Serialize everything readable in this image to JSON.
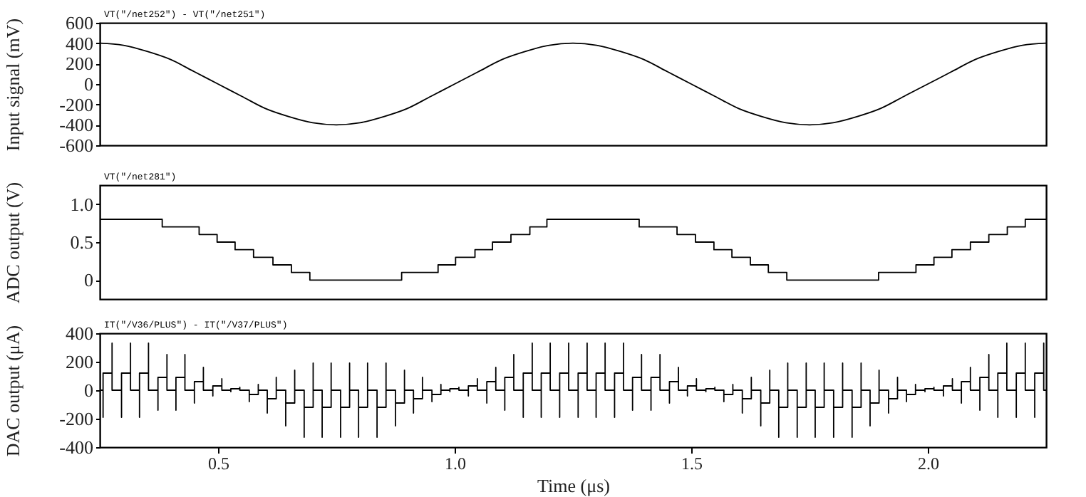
{
  "chart_data": [
    {
      "type": "line",
      "ylabel": "Input signal (mV)",
      "xlim": [
        0.25,
        2.25
      ],
      "ylim": [
        -600,
        600
      ],
      "yticks": [
        -600,
        -400,
        -200,
        0,
        200,
        400,
        600
      ],
      "tick_labels": "y",
      "grid": false,
      "series": [
        {
          "name": "VT(\"/net252\") - VT(\"/net251\")",
          "color": "#000000",
          "x": [
            0.25,
            0.3,
            0.35,
            0.4,
            0.45,
            0.5,
            0.55,
            0.6,
            0.65,
            0.7,
            0.75,
            0.8,
            0.85,
            0.9,
            0.95,
            1.0,
            1.05,
            1.1,
            1.15,
            1.2,
            1.25,
            1.3,
            1.35,
            1.4,
            1.45,
            1.5,
            1.55,
            1.6,
            1.65,
            1.7,
            1.75,
            1.8,
            1.85,
            1.9,
            1.95,
            2.0,
            2.05,
            2.1,
            2.15,
            2.2,
            2.25
          ],
          "values": [
            400,
            380,
            320,
            240,
            120,
            0,
            -120,
            -240,
            -320,
            -380,
            -400,
            -380,
            -320,
            -240,
            -120,
            0,
            120,
            240,
            320,
            380,
            400,
            380,
            320,
            240,
            120,
            0,
            -120,
            -240,
            -320,
            -380,
            -400,
            -380,
            -320,
            -240,
            -120,
            0,
            120,
            240,
            320,
            380,
            400
          ]
        }
      ]
    },
    {
      "type": "step",
      "ylabel": "ADC output (V)",
      "xlim": [
        0.25,
        2.25
      ],
      "ylim": [
        -0.25,
        1.25
      ],
      "yticks": [
        0,
        0.5,
        {
          "value": 1,
          "label": "1.0"
        }
      ],
      "tick_labels": "y",
      "grid": false,
      "series": [
        {
          "name": "VT(\"/net281\")",
          "color": "#000000",
          "x": [
            0.25,
            0.382,
            0.46,
            0.498,
            0.536,
            0.575,
            0.616,
            0.655,
            0.694,
            0.888,
            0.965,
            1.002,
            1.043,
            1.08,
            1.119,
            1.159,
            1.195,
            1.39,
            1.47,
            1.509,
            1.548,
            1.586,
            1.625,
            1.663,
            1.702,
            1.896,
            1.975,
            2.013,
            2.051,
            2.09,
            2.129,
            2.168,
            2.206,
            2.25
          ],
          "values": [
            0.8,
            0.7,
            0.6,
            0.5,
            0.4,
            0.3,
            0.2,
            0.1,
            0,
            0.1,
            0.2,
            0.3,
            0.4,
            0.5,
            0.6,
            0.7,
            0.8,
            0.7,
            0.6,
            0.5,
            0.4,
            0.3,
            0.2,
            0.1,
            0,
            0.1,
            0.2,
            0.3,
            0.4,
            0.5,
            0.6,
            0.7,
            0.8,
            0.8
          ]
        }
      ]
    },
    {
      "type": "step",
      "ylabel": "DAC output (μA)",
      "xlabel": "Time (μs)",
      "xlim": [
        0.25,
        2.25
      ],
      "xticks": [
        0.5,
        {
          "value": 1,
          "label": "1.0"
        },
        1.5,
        {
          "value": 2,
          "label": "2.0"
        }
      ],
      "ylim": [
        -400,
        400
      ],
      "yticks": [
        -400,
        -200,
        0,
        200,
        400
      ],
      "grid": false,
      "series": [
        {
          "name": "IT(\"/V36/PLUS\") - IT(\"/V37/PLUS\")",
          "color": "#000000",
          "x": [
            0.25,
            0.257,
            0.257,
            0.276,
            0.276,
            0.296,
            0.296,
            0.315,
            0.315,
            0.334,
            0.334,
            0.353,
            0.353,
            0.373,
            0.373,
            0.392,
            0.392,
            0.411,
            0.411,
            0.43,
            0.43,
            0.45,
            0.45,
            0.469,
            0.469,
            0.489,
            0.489,
            0.508,
            0.508,
            0.527,
            0.527,
            0.546,
            0.546,
            0.566,
            0.566,
            0.585,
            0.585,
            0.604,
            0.604,
            0.623,
            0.623,
            0.643,
            0.643,
            0.662,
            0.662,
            0.682,
            0.682,
            0.701,
            0.701,
            0.72,
            0.72,
            0.739,
            0.739,
            0.759,
            0.759,
            0.778,
            0.778,
            0.797,
            0.797,
            0.816,
            0.816,
            0.836,
            0.836,
            0.855,
            0.855,
            0.875,
            0.875,
            0.894,
            0.894,
            0.913,
            0.913,
            0.932,
            0.932,
            0.952,
            0.952,
            0.971,
            0.971,
            0.99,
            0.99,
            1.009,
            1.009,
            1.029,
            1.029,
            1.048,
            1.048,
            1.068,
            1.068,
            1.087,
            1.087,
            1.106,
            1.106,
            1.125,
            1.125,
            1.145,
            1.145,
            1.164,
            1.164,
            1.183,
            1.183,
            1.202,
            1.202,
            1.222,
            1.222,
            1.241,
            1.241,
            1.261,
            1.261,
            1.28,
            1.28,
            1.299,
            1.299,
            1.318,
            1.318,
            1.338,
            1.338,
            1.357,
            1.357,
            1.376,
            1.376,
            1.395,
            1.395,
            1.415,
            1.415,
            1.434,
            1.434,
            1.454,
            1.454,
            1.473,
            1.473,
            1.492,
            1.492,
            1.511,
            1.511,
            1.531,
            1.531,
            1.55,
            1.55,
            1.569,
            1.569,
            1.588,
            1.588,
            1.608,
            1.608,
            1.627,
            1.627,
            1.647,
            1.647,
            1.666,
            1.666,
            1.685,
            1.685,
            1.704,
            1.704,
            1.724,
            1.724,
            1.743,
            1.743,
            1.762,
            1.762,
            1.781,
            1.781,
            1.801,
            1.801,
            1.82,
            1.82,
            1.84,
            1.84,
            1.859,
            1.859,
            1.878,
            1.878,
            1.897,
            1.897,
            1.917,
            1.917,
            1.936,
            1.936,
            1.955,
            1.955,
            1.974,
            1.974,
            1.994,
            1.994,
            2.013,
            2.013,
            2.033,
            2.033,
            2.052,
            2.052,
            2.071,
            2.071,
            2.09,
            2.09,
            2.11,
            2.11,
            2.129,
            2.129,
            2.148,
            2.148,
            2.167,
            2.167,
            2.187,
            2.187,
            2.206,
            2.206,
            2.226,
            2.226,
            2.245,
            2.245,
            2.25
          ],
          "values": [
            0,
            -190,
            120,
            330,
            0,
            -190,
            120,
            330,
            0,
            -190,
            120,
            330,
            0,
            -140,
            90,
            250,
            0,
            -140,
            90,
            250,
            0,
            -90,
            60,
            160,
            0,
            -40,
            30,
            80,
            0,
            -10,
            10,
            20,
            0,
            -80,
            -30,
            40,
            0,
            -160,
            -60,
            90,
            0,
            -250,
            -90,
            140,
            0,
            -330,
            -120,
            190,
            0,
            -330,
            -120,
            190,
            0,
            -330,
            -120,
            190,
            0,
            -330,
            -120,
            190,
            0,
            -330,
            -120,
            190,
            0,
            -250,
            -90,
            140,
            0,
            -160,
            -60,
            90,
            0,
            -80,
            -30,
            40,
            0,
            -10,
            10,
            20,
            0,
            -40,
            30,
            80,
            0,
            -90,
            60,
            160,
            0,
            -140,
            90,
            250,
            0,
            -190,
            120,
            330,
            0,
            -190,
            120,
            330,
            0,
            -190,
            120,
            330,
            0,
            -190,
            120,
            330,
            0,
            -190,
            120,
            330,
            0,
            -190,
            120,
            330,
            0,
            -140,
            90,
            250,
            0,
            -140,
            90,
            250,
            0,
            -90,
            60,
            160,
            0,
            -40,
            30,
            80,
            0,
            -10,
            10,
            20,
            0,
            -80,
            -30,
            40,
            0,
            -160,
            -60,
            90,
            0,
            -250,
            -90,
            140,
            0,
            -330,
            -120,
            190,
            0,
            -330,
            -120,
            190,
            0,
            -330,
            -120,
            190,
            0,
            -330,
            -120,
            190,
            0,
            -330,
            -120,
            190,
            0,
            -250,
            -90,
            140,
            0,
            -160,
            -60,
            90,
            0,
            -80,
            -30,
            40,
            0,
            -10,
            10,
            20,
            0,
            -40,
            30,
            80,
            0,
            -90,
            60,
            160,
            0,
            -140,
            90,
            250,
            0,
            -190,
            120,
            330,
            0,
            -190,
            120,
            330,
            0,
            -190,
            120,
            330,
            0,
            0
          ]
        }
      ]
    }
  ]
}
